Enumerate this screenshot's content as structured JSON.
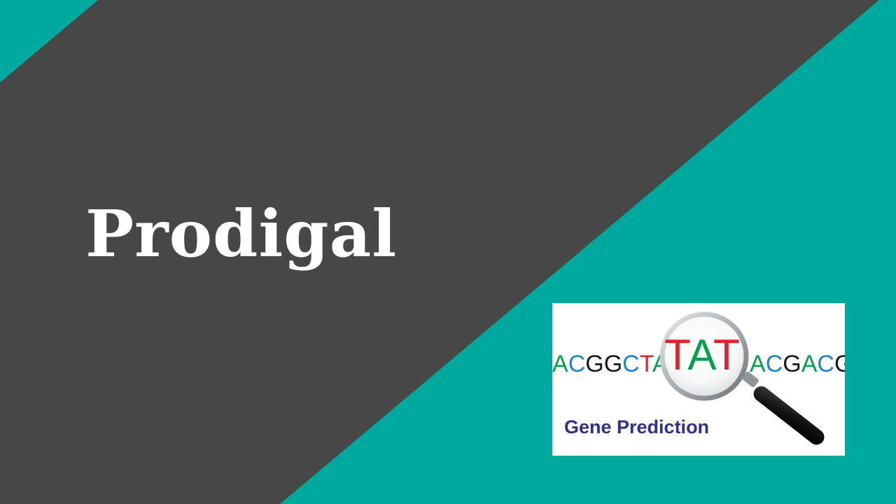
{
  "slide": {
    "title": "Prodigal",
    "colors": {
      "dark": "#484748",
      "teal": "#00a99d",
      "title_text": "#ffffff"
    }
  },
  "card": {
    "seq_left": "ACGGCTA",
    "seq_center": "TAT",
    "seq_right": "ACGACG",
    "caption": "Gene Prediction",
    "icon": "magnifying-glass-icon",
    "colors": {
      "A": "#00a14b",
      "C": "#1a87c8",
      "G": "#1a1a1a",
      "T": "#e0242c",
      "caption": "#2e3192"
    }
  }
}
